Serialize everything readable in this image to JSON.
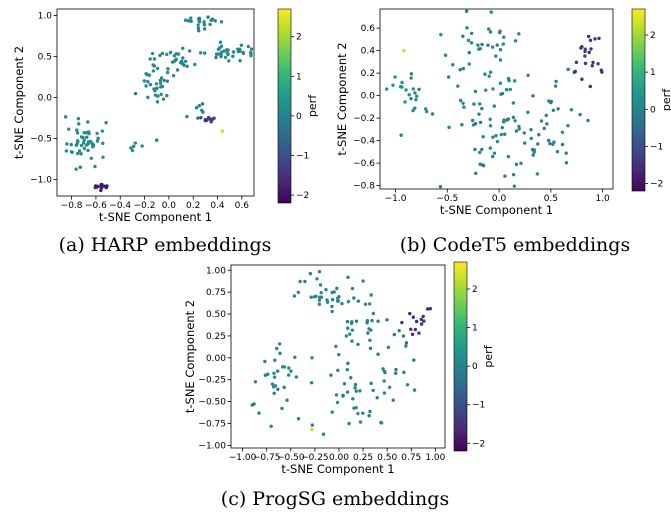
{
  "colors": {
    "viridis": [
      "#440154",
      "#482878",
      "#3e4989",
      "#31688e",
      "#26828e",
      "#1f9e89",
      "#35b779",
      "#6ece58",
      "#b5de2b",
      "#fde725"
    ]
  },
  "chart_data": [
    {
      "type": "scatter",
      "caption": "(a) HARP embeddings",
      "xlabel": "t-SNE Component 1",
      "ylabel": "t-SNE Component 2",
      "colorbar_label": "perf",
      "xlim": [
        -0.92,
        0.7
      ],
      "ylim": [
        -1.2,
        1.08
      ],
      "xticks": [
        -0.8,
        -0.6,
        -0.4,
        -0.2,
        0.0,
        0.2,
        0.4,
        0.6
      ],
      "xtick_labels": [
        "−0.8",
        "−0.6",
        "−0.4",
        "−0.2",
        "0.0",
        "0.2",
        "0.4",
        "0.6"
      ],
      "yticks": [
        -1.0,
        -0.5,
        0.0,
        0.5,
        1.0
      ],
      "ytick_labels": [
        "−1.0",
        "−0.5",
        "0.0",
        "0.5",
        "1.0"
      ],
      "clim": [
        -2.2,
        2.7
      ],
      "cbticks": [
        -2,
        -1,
        0,
        1,
        2
      ],
      "cbtick_labels": [
        "−2",
        "−1",
        "0",
        "1",
        "2"
      ],
      "clusters": [
        {
          "cx": 0.27,
          "cy": 0.92,
          "sx": 0.08,
          "sy": 0.04,
          "n": 22,
          "perf": 0.1
        },
        {
          "cx": 0.5,
          "cy": 0.55,
          "sx": 0.12,
          "sy": 0.05,
          "n": 34,
          "perf": 0.1
        },
        {
          "cx": 0.02,
          "cy": 0.45,
          "sx": 0.1,
          "sy": 0.08,
          "n": 30,
          "perf": 0.1
        },
        {
          "cx": -0.1,
          "cy": 0.15,
          "sx": 0.08,
          "sy": 0.12,
          "n": 28,
          "perf": 0.1
        },
        {
          "cx": -0.68,
          "cy": -0.55,
          "sx": 0.08,
          "sy": 0.14,
          "n": 52,
          "perf": 0.15
        },
        {
          "cx": -0.27,
          "cy": -0.6,
          "sx": 0.03,
          "sy": 0.03,
          "n": 5,
          "perf": 0.1
        },
        {
          "cx": 0.25,
          "cy": -0.17,
          "sx": 0.03,
          "sy": 0.04,
          "n": 7,
          "perf": -0.1
        },
        {
          "cx": 0.35,
          "cy": -0.27,
          "sx": 0.05,
          "sy": 0.02,
          "n": 9,
          "perf": -1.2
        },
        {
          "cx": -0.55,
          "cy": -1.08,
          "sx": 0.025,
          "sy": 0.02,
          "n": 12,
          "perf": -1.9
        }
      ],
      "points": [
        {
          "x": 0.44,
          "y": -0.41,
          "perf": 2.4
        },
        {
          "x": -0.1,
          "y": -0.52,
          "perf": 0.1
        },
        {
          "x": 0.3,
          "y": -0.28,
          "perf": -1.5
        }
      ]
    },
    {
      "type": "scatter",
      "caption": "(b) CodeT5 embeddings",
      "xlabel": "t-SNE Component 1",
      "ylabel": "t-SNE Component 2",
      "colorbar_label": "perf",
      "xlim": [
        -1.15,
        1.1
      ],
      "ylim": [
        -0.83,
        0.77
      ],
      "xticks": [
        -1.0,
        -0.5,
        0.0,
        0.5,
        1.0
      ],
      "xtick_labels": [
        "−1.0",
        "−0.5",
        "0.0",
        "0.5",
        "1.0"
      ],
      "yticks": [
        -0.8,
        -0.6,
        -0.4,
        -0.2,
        0.0,
        0.2,
        0.4,
        0.6
      ],
      "ytick_labels": [
        "−0.8",
        "−0.6",
        "−0.4",
        "−0.2",
        "0.0",
        "0.2",
        "0.4",
        "0.6"
      ],
      "clim": [
        -2.2,
        2.7
      ],
      "cbticks": [
        -2,
        -1,
        0,
        1,
        2
      ],
      "cbtick_labels": [
        "−2",
        "−1",
        "0",
        "1",
        "2"
      ],
      "clusters": [
        {
          "cx": -0.2,
          "cy": 0.45,
          "sx": 0.2,
          "sy": 0.15,
          "n": 35,
          "perf": 0.0
        },
        {
          "cx": -0.2,
          "cy": -0.1,
          "sx": 0.3,
          "sy": 0.18,
          "n": 40,
          "perf": 0.0
        },
        {
          "cx": 0.0,
          "cy": -0.45,
          "sx": 0.25,
          "sy": 0.16,
          "n": 35,
          "perf": 0.0
        },
        {
          "cx": 0.5,
          "cy": -0.15,
          "sx": 0.15,
          "sy": 0.2,
          "n": 30,
          "perf": -0.1
        },
        {
          "cx": -0.9,
          "cy": 0.05,
          "sx": 0.08,
          "sy": 0.1,
          "n": 20,
          "perf": 0.1
        },
        {
          "cx": 0.82,
          "cy": 0.35,
          "sx": 0.1,
          "sy": 0.12,
          "n": 22,
          "perf": -1.5
        }
      ],
      "points": [
        {
          "x": -0.92,
          "y": 0.4,
          "perf": 2.4
        }
      ]
    },
    {
      "type": "scatter",
      "caption": "(c) ProgSG embeddings",
      "xlabel": "t-SNE Component 1",
      "ylabel": "t-SNE Component 2",
      "colorbar_label": "perf",
      "xlim": [
        -1.12,
        1.1
      ],
      "ylim": [
        -1.03,
        1.06
      ],
      "xticks": [
        -1.0,
        -0.75,
        -0.5,
        -0.25,
        0.0,
        0.25,
        0.5,
        0.75,
        1.0
      ],
      "xtick_labels": [
        "−1.00",
        "−0.75",
        "−0.50",
        "−0.25",
        "0.00",
        "0.25",
        "0.50",
        "0.75",
        "1.00"
      ],
      "yticks": [
        -1.0,
        -0.75,
        -0.5,
        -0.25,
        0.0,
        0.25,
        0.5,
        0.75,
        1.0
      ],
      "ytick_labels": [
        "−1.00",
        "−0.75",
        "−0.50",
        "−0.25",
        "0.00",
        "0.25",
        "0.50",
        "0.75",
        "1.00"
      ],
      "clim": [
        -2.2,
        2.7
      ],
      "cbticks": [
        -2,
        -1,
        0,
        1,
        2
      ],
      "cbtick_labels": [
        "−2",
        "−1",
        "0",
        "1",
        "2"
      ],
      "clusters": [
        {
          "cx": -0.15,
          "cy": 0.7,
          "sx": 0.15,
          "sy": 0.15,
          "n": 30,
          "perf": 0.0
        },
        {
          "cx": 0.25,
          "cy": 0.45,
          "sx": 0.2,
          "sy": 0.2,
          "n": 30,
          "perf": 0.0
        },
        {
          "cx": -0.7,
          "cy": -0.2,
          "sx": 0.15,
          "sy": 0.2,
          "n": 30,
          "perf": 0.05
        },
        {
          "cx": 0.2,
          "cy": -0.4,
          "sx": 0.25,
          "sy": 0.25,
          "n": 45,
          "perf": 0.0
        },
        {
          "cx": 0.8,
          "cy": 0.45,
          "sx": 0.08,
          "sy": 0.1,
          "n": 14,
          "perf": -1.6
        },
        {
          "cx": 0.6,
          "cy": 0.05,
          "sx": 0.1,
          "sy": 0.15,
          "n": 12,
          "perf": -0.2
        }
      ],
      "points": [
        {
          "x": -0.28,
          "y": -0.82,
          "perf": 2.4
        }
      ]
    }
  ]
}
